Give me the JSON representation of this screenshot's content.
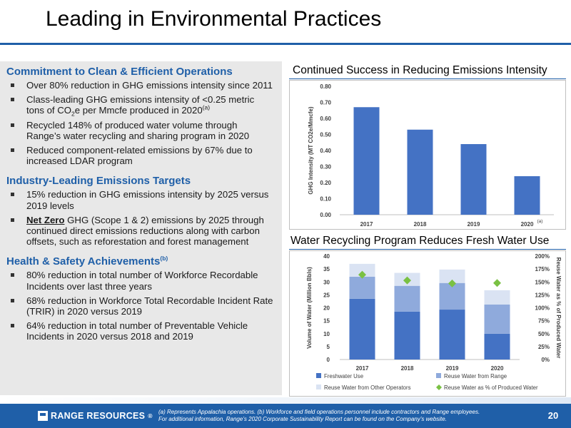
{
  "page": {
    "title": "Leading in Environmental Practices",
    "page_number": "20"
  },
  "left": {
    "sections": [
      {
        "heading": "Commitment to Clean & Efficient Operations",
        "items": [
          "Over 80% reduction in GHG emissions intensity since 2011",
          "Class-leading GHG emissions intensity of <0.25 metric tons of CO",
          "Recycled 148% of produced water volume through Range’s water recycling and sharing program in 2020",
          "Reduced component-related emissions by 67% due to increased LDAR program"
        ],
        "co2_sub": "2",
        "co2_tail": "e per Mmcfe produced in 2020",
        "co2_sup": "(a)"
      },
      {
        "heading": "Industry-Leading Emissions Targets",
        "items": [
          "15% reduction in GHG emissions intensity by 2025 versus 2019 levels",
          "GHG (Scope 1 & 2) emissions by 2025 through continued direct emissions reductions along with carbon offsets, such as reforestation and forest management"
        ],
        "net_zero": "Net Zero"
      },
      {
        "heading": "Health & Safety Achievements",
        "heading_sup": "(b)",
        "items": [
          "80% reduction in total number of Workforce Recordable Incidents over last three years",
          "68% reduction in Workforce Total Recordable Incident Rate (TRIR) in 2020 versus 2019",
          "64% reduction in total number of Preventable Vehicle Incidents in 2020 versus 2018 and 2019"
        ]
      }
    ]
  },
  "chart_data": [
    {
      "type": "bar",
      "title": "Continued Success in Reducing Emissions Intensity",
      "ylabel": "GHG Intensity (MT CO2e/Mmcfe)",
      "categories": [
        "2017",
        "2018",
        "2019",
        "2020"
      ],
      "category_note": "(a)",
      "values": [
        0.67,
        0.53,
        0.44,
        0.24
      ],
      "ylim": [
        0,
        0.8
      ],
      "yticks": [
        "0.00",
        "0.10",
        "0.20",
        "0.30",
        "0.40",
        "0.50",
        "0.60",
        "0.70",
        "0.80"
      ],
      "grid": false,
      "color": "#4472c4"
    },
    {
      "type": "bar",
      "stacked": true,
      "title": "Water Recycling Program Reduces Fresh Water Use",
      "ylabel": "Volume of Water (Million Bbls)",
      "y2label": "Reuse Water as % of Produced Water",
      "categories": [
        "2017",
        "2018",
        "2019",
        "2020"
      ],
      "ylim": [
        0,
        40
      ],
      "yticks": [
        "0",
        "5",
        "10",
        "15",
        "20",
        "25",
        "30",
        "35",
        "40"
      ],
      "y2lim": [
        0,
        200
      ],
      "y2ticks": [
        "0%",
        "25%",
        "50%",
        "75%",
        "100%",
        "125%",
        "150%",
        "175%",
        "200%"
      ],
      "series": [
        {
          "name": "Freshwater Use",
          "values": [
            23.5,
            18.5,
            19.3,
            10.0
          ],
          "color": "#4472c4"
        },
        {
          "name": "Reuse Water from Range",
          "values": [
            8.5,
            10.0,
            10.3,
            11.3
          ],
          "color": "#8faadc"
        },
        {
          "name": "Reuse Water from Other Operators",
          "values": [
            5.0,
            5.0,
            5.2,
            5.5
          ],
          "color": "#dae3f3"
        },
        {
          "name": "Reuse Water as % of Produced Water",
          "axis": "y2",
          "marker": "diamond",
          "values": [
            164,
            153,
            147,
            148
          ],
          "color": "#7ac143"
        }
      ],
      "legend_position": "bottom"
    }
  ],
  "footer": {
    "logo_text": "RANGE RESOURCES",
    "logo_reg": "®",
    "footnote_line1": "(a) Represents Appalachia operations. (b) Workforce and field operations personnel include contractors and Range employees.",
    "footnote_line2": "For additional information, Range’s 2020 Corporate Sustainability Report can be found on the Company’s website."
  }
}
